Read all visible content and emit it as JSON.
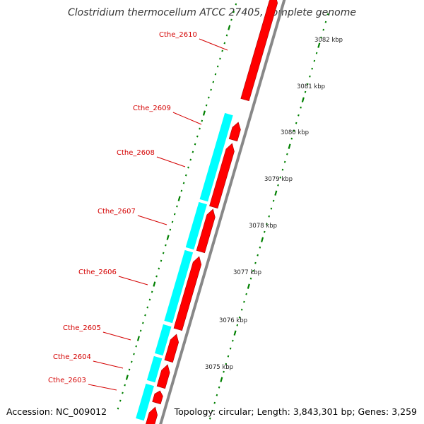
{
  "title": "Clostridium thermocellum ATCC 27405, complete genome",
  "footer": {
    "accession": "Accession: NC_009012",
    "stats": "Topology: circular; Length: 3,843,301 bp; Genes: 3,259"
  },
  "colors": {
    "forward_gene": "#ff0000",
    "reverse_gene": "#00ffff",
    "backbone": "#888888",
    "tick": "#008000",
    "label": "#d40000"
  },
  "gene_labels": [
    "Cthe_2610",
    "Cthe_2609",
    "Cthe_2608",
    "Cthe_2607",
    "Cthe_2606",
    "Cthe_2605",
    "Cthe_2604",
    "Cthe_2603"
  ],
  "scale_labels": [
    "3082 kbp",
    "3081 kbp",
    "3080 kbp",
    "3079 kbp",
    "3078 kbp",
    "3077 kbp",
    "3076 kbp",
    "3075 kbp"
  ]
}
